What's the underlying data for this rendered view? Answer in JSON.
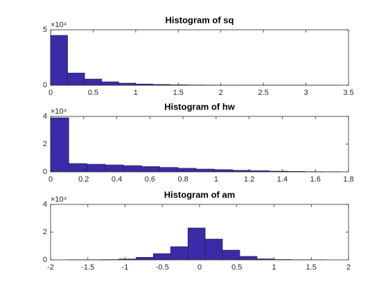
{
  "chart_data": [
    {
      "type": "histogram",
      "title": "Histogram of sq",
      "y_multiplier": "×10⁴",
      "color": "#3a2ca8",
      "bins": [
        0,
        0.2,
        0.4,
        0.6,
        0.8,
        1.0,
        1.2,
        1.4,
        1.6,
        1.8,
        2.0,
        2.2,
        2.4,
        2.6,
        2.8,
        3.0,
        3.2,
        3.4
      ],
      "values": [
        45000,
        11000,
        5600,
        3100,
        1900,
        1100,
        700,
        400,
        250,
        150,
        100,
        60,
        40,
        20,
        10,
        5,
        3
      ],
      "xlim": [
        0,
        3.5
      ],
      "xticks": [
        0,
        0.5,
        1,
        1.5,
        2,
        2.5,
        3,
        3.5
      ],
      "ylim": [
        0,
        50000
      ],
      "yticks": [
        0,
        {
          "value": 50000,
          "label": "5"
        }
      ]
    },
    {
      "type": "histogram",
      "title": "Histogram of hw",
      "y_multiplier": "×10⁴",
      "color": "#3a2ca8",
      "bins": [
        0,
        0.11,
        0.22,
        0.33,
        0.44,
        0.55,
        0.66,
        0.77,
        0.88,
        0.99,
        1.1,
        1.21,
        1.32,
        1.43,
        1.54,
        1.65,
        1.76
      ],
      "values": [
        39000,
        6000,
        5500,
        5000,
        4500,
        3800,
        3200,
        2600,
        2000,
        1600,
        1100,
        800,
        500,
        300,
        150,
        80
      ],
      "xlim": [
        0,
        1.8
      ],
      "xticks": [
        0,
        0.2,
        0.4,
        0.6,
        0.8,
        1,
        1.2,
        1.4,
        1.6,
        1.8
      ],
      "ylim": [
        0,
        40000
      ],
      "yticks": [
        0,
        {
          "value": 20000,
          "label": "2"
        },
        {
          "value": 40000,
          "label": "4"
        }
      ]
    },
    {
      "type": "histogram",
      "title": "Histogram of am",
      "y_multiplier": "×10⁴",
      "color": "#3a2ca8",
      "bins": [
        -1.78,
        -1.548,
        -1.316,
        -1.084,
        -0.852,
        -0.62,
        -0.388,
        -0.156,
        0.076,
        0.308,
        0.54,
        0.772,
        1.004,
        1.236,
        1.468,
        1.7
      ],
      "values": [
        50,
        100,
        200,
        600,
        1800,
        4500,
        9500,
        23000,
        15000,
        7000,
        2500,
        700,
        250,
        80,
        30
      ],
      "xlim": [
        -2,
        2
      ],
      "xticks": [
        -2,
        -1.5,
        -1,
        -0.5,
        0,
        0.5,
        1,
        1.5,
        2
      ],
      "ylim": [
        0,
        40000
      ],
      "yticks": [
        0,
        {
          "value": 20000,
          "label": "2"
        },
        {
          "value": 40000,
          "label": "4"
        }
      ]
    }
  ]
}
